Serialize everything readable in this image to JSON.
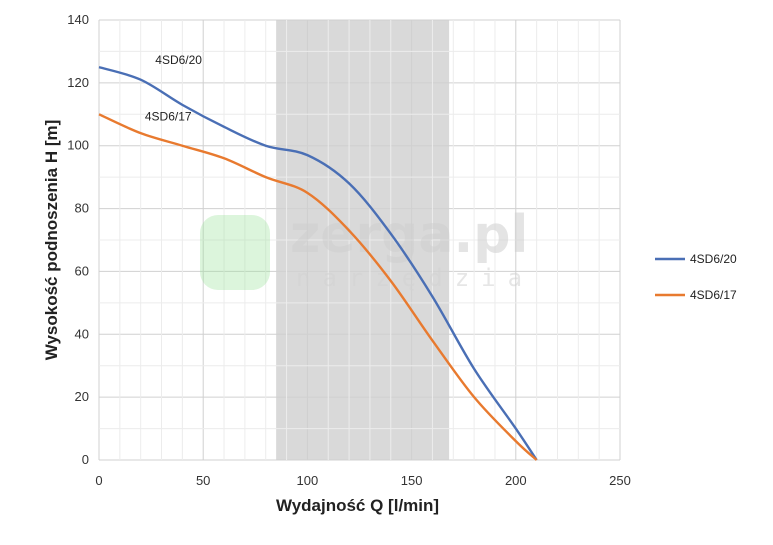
{
  "chart_data": {
    "type": "line",
    "title": "",
    "xlabel": "Wydajność Q [l/min]",
    "ylabel": "Wysokość podnoszenia H [m]",
    "xlim": [
      0,
      250
    ],
    "ylim": [
      0,
      140
    ],
    "xticks": [
      0,
      50,
      100,
      150,
      200,
      250
    ],
    "yticks": [
      0,
      20,
      40,
      60,
      80,
      100,
      120,
      140
    ],
    "grid": true,
    "legend_position": "right",
    "shaded_band": {
      "x_from": 85,
      "x_to": 168,
      "color": "#d9d9d9"
    },
    "series": [
      {
        "name": "4SD6/20",
        "color": "#4a6fb5",
        "x": [
          0,
          20,
          40,
          60,
          80,
          100,
          120,
          140,
          160,
          180,
          200,
          210
        ],
        "y": [
          125,
          121,
          113,
          106,
          100,
          97,
          88,
          72,
          52,
          29,
          10,
          0
        ]
      },
      {
        "name": "4SD6/17",
        "color": "#e87a2f",
        "x": [
          0,
          20,
          40,
          60,
          80,
          100,
          120,
          140,
          160,
          180,
          200,
          210
        ],
        "y": [
          110,
          104,
          100,
          96,
          90,
          85,
          73,
          57,
          38,
          20,
          6,
          0
        ]
      }
    ],
    "annotations": [
      {
        "text": "4SD6/20",
        "x": 27,
        "y": 126
      },
      {
        "text": "4SD6/17",
        "x": 22,
        "y": 108
      }
    ]
  },
  "watermark": {
    "main": "zerga.pl",
    "sub": "narzędzia",
    "logo_color": "#9be39b"
  },
  "colors": {
    "grid": "#d0d0d0",
    "axis": "#bdbdbd"
  }
}
